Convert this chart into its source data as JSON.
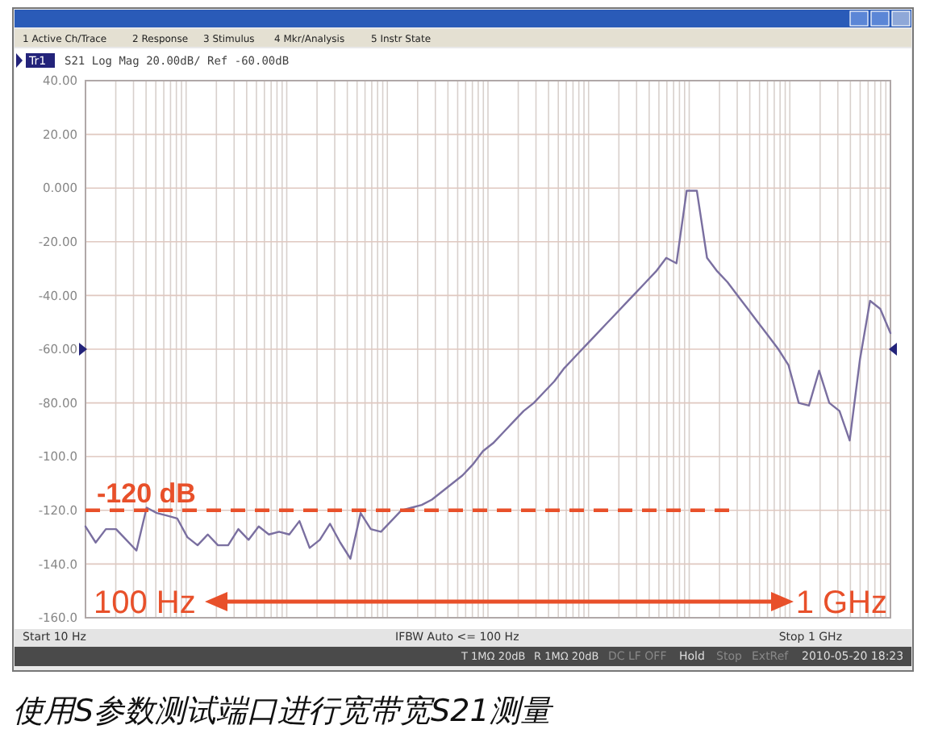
{
  "chart_data": {
    "type": "line",
    "title": "S21 Log Mag 20.00dB/ Ref -60.00dB",
    "categories": [
      null,
      null,
      null,
      null,
      null,
      null,
      null,
      null,
      null,
      null,
      null,
      null,
      null,
      null,
      null,
      null,
      null,
      null,
      null,
      null,
      null,
      null,
      null,
      null,
      null,
      null,
      null,
      null,
      null,
      null,
      null,
      null,
      null,
      null,
      null,
      null,
      null,
      null,
      null,
      null,
      null,
      null,
      null,
      null,
      null,
      null,
      null,
      null,
      null,
      null,
      null,
      null,
      null,
      null,
      null,
      null,
      null,
      null,
      null,
      null,
      null,
      null,
      null,
      null,
      null,
      null,
      null,
      null,
      null,
      null,
      null,
      null,
      null,
      null,
      null,
      null,
      null,
      null,
      null,
      null
    ],
    "series": [
      {
        "color": "#7a6fa0",
        "values": [
          -126,
          -132,
          -127,
          -127,
          -131,
          -135,
          -119,
          -121,
          -122,
          -123,
          -130,
          -133,
          -129,
          -133,
          -133,
          -127,
          -131,
          -126,
          -129,
          -128,
          -129,
          -124,
          -134,
          -131,
          -125,
          -132,
          -138,
          -121,
          -127,
          -128,
          -124,
          -120,
          -119,
          -118,
          -116,
          -113,
          -110,
          -107,
          -103,
          -98,
          -95,
          -91,
          -87,
          -83,
          -80,
          -76,
          -72,
          -67,
          -63,
          -59,
          -55,
          -51,
          -47,
          -43,
          -39,
          -35,
          -31,
          -26,
          -28,
          -1,
          -1,
          -26,
          -31,
          -35,
          -40,
          -45,
          -50,
          -55,
          -60,
          -66,
          -80,
          -81,
          -68,
          -80,
          -83,
          -94,
          -64,
          -42,
          -45,
          -54
        ]
      }
    ],
    "ylim": [
      -160,
      40
    ],
    "yticks": [
      {
        "value": 40,
        "label": "40.00"
      },
      {
        "value": 20,
        "label": "20.00"
      },
      {
        "value": 0,
        "label": "0.000"
      },
      {
        "value": -20,
        "label": "-20.00"
      },
      {
        "value": -40,
        "label": "-40.00"
      },
      {
        "value": -60,
        "label": "-60.00"
      },
      {
        "value": -80,
        "label": "-80.00"
      },
      {
        "value": -100,
        "label": "-100.0"
      },
      {
        "value": -120,
        "label": "-120.0"
      },
      {
        "value": -140,
        "label": "-140.0"
      },
      {
        "value": -160,
        "label": "-160.0"
      }
    ],
    "tick_labels": "y",
    "grid": true,
    "line_style": "solid",
    "ref_lines": [
      {
        "axis": "y",
        "value": -120,
        "label": "-120 dB",
        "color": "#e8502a",
        "line_style": "dashed"
      }
    ],
    "annotations": [
      "100 Hz",
      "1 GHz",
      "Start 10 Hz",
      "IFBW Auto <= 100 Hz",
      "Stop 1 GHz",
      "T 1MΩ 20dB",
      "R 1MΩ 20dB",
      "DC LF OFF",
      "Hold",
      "Stop",
      "ExtRef",
      "2010-05-20 18:23",
      "使用S参数测试端口进行宽带宽S21测量",
      "1 Active Ch/Trace",
      "2 Response",
      "3 Stimulus",
      "4 Mkr/Analysis",
      "5 Instr State",
      "Tr1"
    ]
  }
}
